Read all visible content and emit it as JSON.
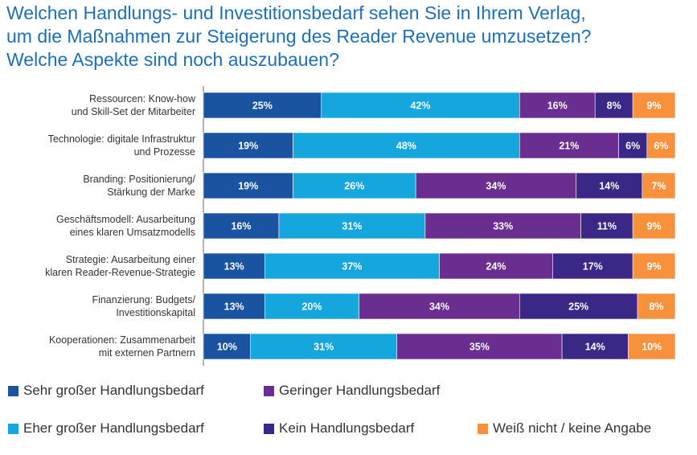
{
  "title_lines": [
    "Welchen Handlungs- und Investitionsbedarf sehen Sie in Ihrem Verlag,",
    "um die Maßnahmen zur Steigerung des Reader Revenue umzusetzen?",
    "Welche Aspekte sind noch auszubauen?"
  ],
  "colors": {
    "title": "#1d6fb8",
    "sehr": "#1a54a0",
    "eher": "#16a6de",
    "gering": "#6a2e91",
    "kein": "#3a2786",
    "weiss": "#f7913c"
  },
  "chart_data": {
    "type": "bar",
    "orientation": "horizontal",
    "stacked": true,
    "categories": [
      [
        "Ressourcen: Know-how",
        "und Skill-Set der Mitarbeiter"
      ],
      [
        "Technologie: digitale Infrastruktur",
        "und Prozesse"
      ],
      [
        "Branding: Positionierung/",
        "Stärkung der Marke"
      ],
      [
        "Geschäftsmodell: Ausarbeitung",
        "eines klaren Umsatzmodells"
      ],
      [
        "Strategie: Ausarbeitung einer",
        "klaren Reader-Revenue-Strategie"
      ],
      [
        "Finanzierung: Budgets/",
        "Investitionskapital"
      ],
      [
        "Kooperationen: Zusammenarbeit",
        "mit externen Partnern"
      ]
    ],
    "series": [
      {
        "name": "Sehr großer Handlungsbedarf",
        "color": "#1a54a0",
        "values": [
          25,
          19,
          19,
          16,
          13,
          13,
          10
        ]
      },
      {
        "name": "Eher großer Handlungsbedarf",
        "color": "#16a6de",
        "values": [
          42,
          48,
          26,
          31,
          37,
          20,
          31
        ]
      },
      {
        "name": "Geringer Handlungsbedarf",
        "color": "#6a2e91",
        "values": [
          16,
          21,
          34,
          33,
          24,
          34,
          35
        ]
      },
      {
        "name": "Kein Handlungsbedarf",
        "color": "#3a2786",
        "values": [
          8,
          6,
          14,
          11,
          17,
          25,
          14
        ]
      },
      {
        "name": "Weiß nicht / keine Angabe",
        "color": "#f7913c",
        "values": [
          9,
          6,
          7,
          9,
          9,
          8,
          10
        ]
      }
    ],
    "value_suffix": "%",
    "legend_position": "bottom",
    "grid": false
  }
}
